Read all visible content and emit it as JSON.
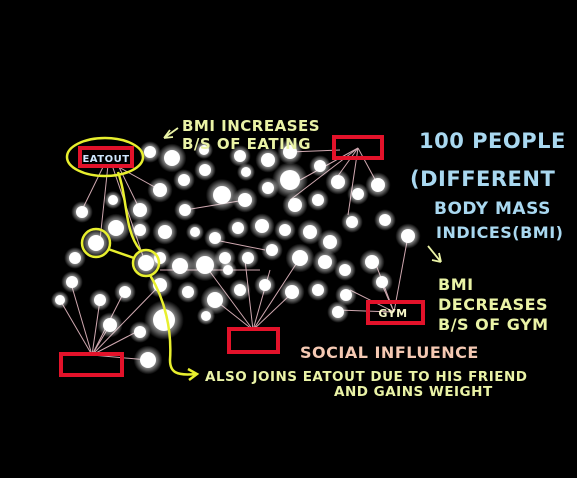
{
  "colors": {
    "background": "#000000",
    "node": "#ffffff",
    "node_glow": "#ffffff",
    "link": "#f4c6cf",
    "box": "#e3122a",
    "highlight": "#e8ef2e",
    "title_text": "#a9d8f0",
    "annotation_text": "#eaf3a6",
    "social_text": "#f5c9b3"
  },
  "boxes": {
    "eatout_label": "EATOUT",
    "gym_label": "GYM"
  },
  "annotations": {
    "bmi_increases_line1": "BMI INCREASES",
    "bmi_increases_line2": "B/S OF EATING",
    "title_line1": "100 PEOPLE",
    "title_line2": "(DIFFERENT",
    "title_line3": "BODY MASS",
    "title_line4": "INDICES(BMI)",
    "bmi_decreases_line1": "BMI",
    "bmi_decreases_line2": "DECREASES",
    "bmi_decreases_line3": "B/S OF GYM",
    "social_influence": "SOCIAL INFLUENCE",
    "joins_line1": "ALSO JOINS EATOUT DUE TO HIS FRIEND",
    "joins_line2": "AND GAINS WEIGHT"
  }
}
